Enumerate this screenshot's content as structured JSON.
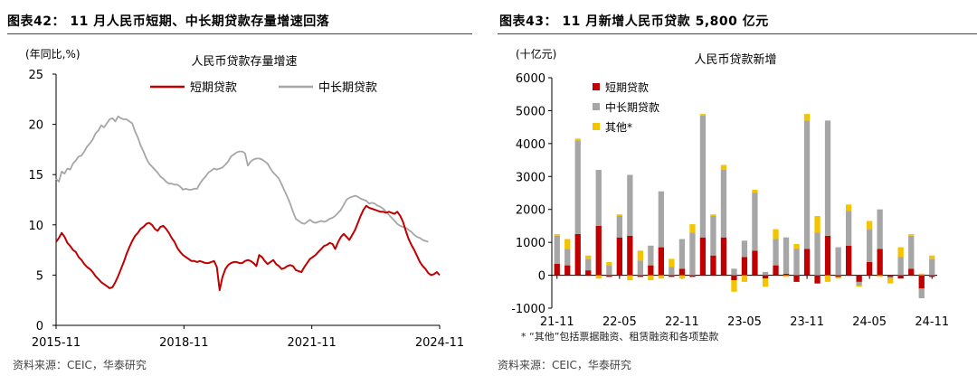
{
  "left": {
    "figure_title": "图表42：  11 月人民币短期、中长期贷款存量增速回落",
    "source": "资料来源：CEIC，华泰研究"
  },
  "right": {
    "figure_title": "图表43：  11 月新增人民币贷款 5,800 亿元",
    "source": "资料来源：CEIC，华泰研究",
    "footnote": "* “其他”包括票据融资、租赁融资和各项垫款"
  },
  "colors": {
    "short": "#c00000",
    "long": "#a6a6a6",
    "other": "#f5c400",
    "rule": "#2b4a7a"
  },
  "chart_data": [
    {
      "type": "line",
      "title": "人民币贷款存量增速",
      "unit_label": "(年同比,%)",
      "ylim": [
        0,
        25
      ],
      "yticks": [
        0,
        5,
        10,
        15,
        20,
        25
      ],
      "xlim": [
        "2015-11",
        "2024-11"
      ],
      "xticks": [
        "2015-11",
        "2018-11",
        "2021-11",
        "2024-11"
      ],
      "legend_position": "top",
      "series": [
        {
          "name": "短期贷款",
          "color": "#c00000",
          "values": [
            8.3,
            8.7,
            9.2,
            8.8,
            8.2,
            7.9,
            7.5,
            7.3,
            6.8,
            6.5,
            6.1,
            5.8,
            5.6,
            5.3,
            4.9,
            4.6,
            4.3,
            4.1,
            3.9,
            3.7,
            3.8,
            4.3,
            4.9,
            5.6,
            6.3,
            7.1,
            7.8,
            8.4,
            8.9,
            9.2,
            9.6,
            9.8,
            10.1,
            10.2,
            10.0,
            9.6,
            9.4,
            9.8,
            9.9,
            9.6,
            9.2,
            8.7,
            8.3,
            7.7,
            7.3,
            7.0,
            6.8,
            6.6,
            6.4,
            6.4,
            6.3,
            6.4,
            6.3,
            6.2,
            6.2,
            6.3,
            6.4,
            5.8,
            3.5,
            4.8,
            5.6,
            6.0,
            6.2,
            6.3,
            6.3,
            6.2,
            6.2,
            6.4,
            6.5,
            6.4,
            6.2,
            5.9,
            7.0,
            6.8,
            6.4,
            6.1,
            6.3,
            6.5,
            6.1,
            5.9,
            5.6,
            5.7,
            5.9,
            6.0,
            5.9,
            5.5,
            5.4,
            5.3,
            5.8,
            6.2,
            6.6,
            6.8,
            7.0,
            7.3,
            7.6,
            7.9,
            8.0,
            8.2,
            8.1,
            7.6,
            8.3,
            8.8,
            9.1,
            8.8,
            8.5,
            9.0,
            9.5,
            10.2,
            10.9,
            11.5,
            11.9,
            11.7,
            11.6,
            11.5,
            11.4,
            11.3,
            11.3,
            11.2,
            11.3,
            11.2,
            11.1,
            11.3,
            10.9,
            10.3,
            9.4,
            8.6,
            8.0,
            7.5,
            6.9,
            6.3,
            5.9,
            5.6,
            5.2,
            5.0,
            5.1,
            5.3,
            5.0
          ]
        },
        {
          "name": "中长期贷款",
          "color": "#a6a6a6",
          "values": [
            14.6,
            14.3,
            15.3,
            15.1,
            15.6,
            15.5,
            16.1,
            16.4,
            16.8,
            16.9,
            17.3,
            17.8,
            18.1,
            18.5,
            19.1,
            19.4,
            19.9,
            19.7,
            20.1,
            20.5,
            20.6,
            20.3,
            20.8,
            20.6,
            20.5,
            20.5,
            20.3,
            20.1,
            19.3,
            18.7,
            17.9,
            17.3,
            16.6,
            16.1,
            15.8,
            15.5,
            15.2,
            14.8,
            14.6,
            14.3,
            14.1,
            14.1,
            14.0,
            14.0,
            13.8,
            13.5,
            13.6,
            13.5,
            13.5,
            13.6,
            13.6,
            14.1,
            14.5,
            14.8,
            15.2,
            15.4,
            15.6,
            15.5,
            15.6,
            15.7,
            16.0,
            16.3,
            16.8,
            17.0,
            17.2,
            17.3,
            17.3,
            17.1,
            15.9,
            16.3,
            16.5,
            16.6,
            16.6,
            16.5,
            16.3,
            16.1,
            15.6,
            15.2,
            14.9,
            14.6,
            14.0,
            13.4,
            12.8,
            12.1,
            11.3,
            10.6,
            10.4,
            10.2,
            10.1,
            10.3,
            10.5,
            10.3,
            10.2,
            10.3,
            10.4,
            10.3,
            10.4,
            10.6,
            10.7,
            10.9,
            11.2,
            11.5,
            12.0,
            12.5,
            12.7,
            12.8,
            12.9,
            12.8,
            12.6,
            12.5,
            12.4,
            12.1,
            12.2,
            12.1,
            11.9,
            11.8,
            11.6,
            11.3,
            11.0,
            10.7,
            10.4,
            10.1,
            9.9,
            9.8,
            9.7,
            9.5,
            9.3,
            9.0,
            8.8,
            8.7,
            8.5,
            8.4,
            8.3
          ]
        }
      ]
    },
    {
      "type": "bar",
      "stacked": true,
      "title": "人民币贷款新增",
      "unit_label": "(十亿元)",
      "ylim": [
        -1000,
        6000
      ],
      "yticks": [
        -1000,
        0,
        1000,
        2000,
        3000,
        4000,
        5000,
        6000
      ],
      "categories": [
        "21-11",
        "21-12",
        "22-01",
        "22-02",
        "22-03",
        "22-04",
        "22-05",
        "22-06",
        "22-07",
        "22-08",
        "22-09",
        "22-10",
        "22-11",
        "22-12",
        "23-01",
        "23-02",
        "23-03",
        "23-04",
        "23-05",
        "23-06",
        "23-07",
        "23-08",
        "23-09",
        "23-10",
        "23-11",
        "23-12",
        "24-01",
        "24-02",
        "24-03",
        "24-04",
        "24-05",
        "24-06",
        "24-07",
        "24-08",
        "24-09",
        "24-10",
        "24-11"
      ],
      "xticks": [
        "21-11",
        "22-05",
        "22-11",
        "23-05",
        "23-11",
        "24-05",
        "24-11"
      ],
      "legend_position": "top-left",
      "series": [
        {
          "name": "短期贷款",
          "color": "#c00000",
          "values": [
            350,
            300,
            1250,
            150,
            1500,
            -50,
            1150,
            1200,
            -50,
            300,
            850,
            -50,
            200,
            -50,
            1150,
            600,
            1150,
            -150,
            550,
            750,
            -100,
            300,
            50,
            -200,
            800,
            -250,
            1200,
            -50,
            900,
            -200,
            400,
            800,
            -50,
            -100,
            200,
            -400,
            -50
          ]
        },
        {
          "name": "中长期贷款",
          "color": "#a6a6a6",
          "values": [
            850,
            500,
            2850,
            350,
            1700,
            300,
            650,
            1850,
            450,
            600,
            1700,
            250,
            900,
            1300,
            3700,
            1200,
            2050,
            200,
            500,
            1750,
            100,
            800,
            1100,
            800,
            3900,
            1300,
            3500,
            850,
            1050,
            -100,
            1000,
            1200,
            -50,
            550,
            1000,
            -300,
            500
          ]
        },
        {
          "name": "其他*",
          "color": "#f5c400",
          "values": [
            50,
            300,
            50,
            100,
            -100,
            100,
            50,
            -150,
            300,
            -150,
            -100,
            250,
            -100,
            250,
            50,
            50,
            150,
            -350,
            -200,
            100,
            -250,
            300,
            -50,
            150,
            200,
            500,
            -200,
            -50,
            200,
            -50,
            250,
            -50,
            -150,
            300,
            50,
            50,
            100
          ]
        }
      ]
    }
  ]
}
